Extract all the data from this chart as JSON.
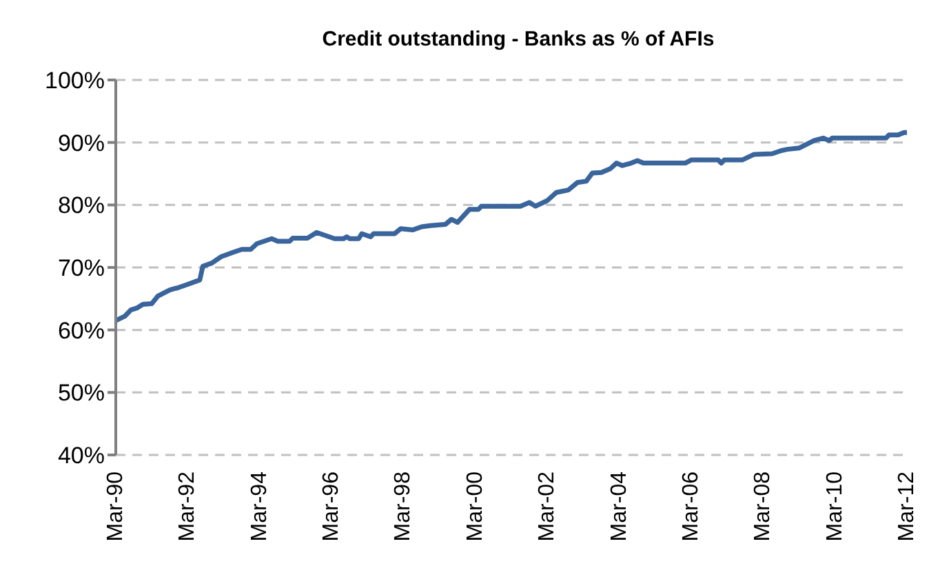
{
  "chart_data": {
    "type": "line",
    "title": "Credit outstanding  - Banks as % of AFIs",
    "x": [
      "1990-03",
      "1990-06",
      "1990-08",
      "1990-10",
      "1990-12",
      "1991-03",
      "1991-05",
      "1991-09",
      "1991-12",
      "1992-03",
      "1992-07",
      "1992-08",
      "1992-11",
      "1993-02",
      "1993-06",
      "1993-09",
      "1993-12",
      "1994-02",
      "1994-07",
      "1994-09",
      "1995-01",
      "1995-02",
      "1995-07",
      "1995-10",
      "1996-04",
      "1996-07",
      "1996-08",
      "1996-09",
      "1996-12",
      "1997-01",
      "1997-04",
      "1997-05",
      "1997-12",
      "1998-02",
      "1998-06",
      "1998-09",
      "1998-12",
      "1999-05",
      "1999-07",
      "1999-09",
      "2000-01",
      "2000-04",
      "2000-05",
      "2001-06",
      "2001-09",
      "2001-11",
      "2002-03",
      "2002-06",
      "2002-10",
      "2003-01",
      "2003-04",
      "2003-06",
      "2003-09",
      "2003-12",
      "2004-02",
      "2004-04",
      "2004-07",
      "2004-09",
      "2004-11",
      "2006-01",
      "2006-03",
      "2006-12",
      "2007-01",
      "2007-02",
      "2007-08",
      "2007-12",
      "2008-06",
      "2008-09",
      "2008-11",
      "2009-03",
      "2009-08",
      "2009-11",
      "2010-01",
      "2010-02",
      "2011-08",
      "2011-09",
      "2011-12",
      "2012-02",
      "2012-03"
    ],
    "series": [
      {
        "color": "#3a659c",
        "values": [
          61.5,
          62.2,
          63.2,
          63.5,
          64.1,
          64.2,
          65.4,
          66.4,
          66.8,
          67.3,
          68.0,
          70.2,
          70.7,
          71.7,
          72.4,
          72.9,
          72.9,
          73.8,
          74.6,
          74.2,
          74.2,
          74.7,
          74.7,
          75.6,
          74.6,
          74.6,
          74.9,
          74.6,
          74.6,
          75.4,
          74.9,
          75.4,
          75.4,
          76.2,
          76.0,
          76.5,
          76.7,
          76.9,
          77.7,
          77.2,
          79.3,
          79.3,
          79.8,
          79.8,
          80.4,
          79.8,
          80.7,
          82.0,
          82.4,
          83.6,
          83.8,
          85.1,
          85.2,
          85.8,
          86.7,
          86.3,
          86.7,
          87.1,
          86.7,
          86.7,
          87.2,
          87.2,
          86.7,
          87.2,
          87.2,
          88.1,
          88.2,
          88.7,
          88.9,
          89.1,
          90.3,
          90.7,
          90.3,
          90.7,
          90.7,
          91.2,
          91.2,
          91.6,
          91.6
        ]
      }
    ],
    "xlim": [
      "1990-03",
      "2012-03"
    ],
    "xticks": [
      {
        "value": "1990-03",
        "label": "Mar-90"
      },
      {
        "value": "1992-03",
        "label": "Mar-92"
      },
      {
        "value": "1994-03",
        "label": "Mar-94"
      },
      {
        "value": "1996-03",
        "label": "Mar-96"
      },
      {
        "value": "1998-03",
        "label": "Mar-98"
      },
      {
        "value": "2000-03",
        "label": "Mar-00"
      },
      {
        "value": "2002-03",
        "label": "Mar-02"
      },
      {
        "value": "2004-03",
        "label": "Mar-04"
      },
      {
        "value": "2006-03",
        "label": "Mar-06"
      },
      {
        "value": "2008-03",
        "label": "Mar-08"
      },
      {
        "value": "2010-03",
        "label": "Mar-10"
      },
      {
        "value": "2012-03",
        "label": "Mar-12"
      }
    ],
    "ylim": [
      40,
      100
    ],
    "yticks": [
      {
        "value": 40,
        "label": "40%"
      },
      {
        "value": 50,
        "label": "50%"
      },
      {
        "value": 60,
        "label": "60%"
      },
      {
        "value": 70,
        "label": "70%"
      },
      {
        "value": 80,
        "label": "80%"
      },
      {
        "value": 90,
        "label": "90%"
      },
      {
        "value": 100,
        "label": "100%"
      }
    ],
    "grid": "y",
    "legend": false,
    "marker": "none",
    "line_style": "solid"
  }
}
